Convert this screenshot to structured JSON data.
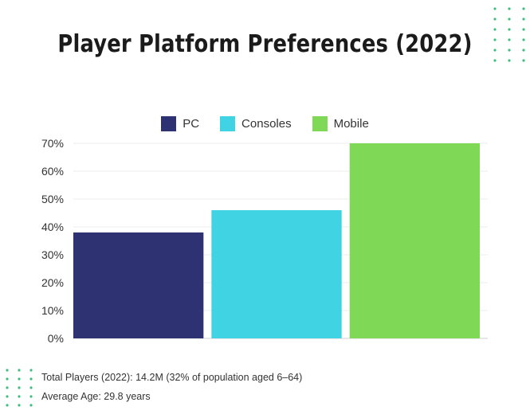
{
  "title": "Player Platform Preferences (2022)",
  "notes": [
    "Total Players (2022): 14.2M (32% of population aged 6–64)",
    "Average Age: 29.8 years"
  ],
  "chart_data": {
    "type": "bar",
    "title": "Player Platform Preferences (2022)",
    "categories": [
      "PC",
      "Consoles",
      "Mobile"
    ],
    "values": [
      38,
      46,
      70
    ],
    "colors": [
      "#2e3272",
      "#3fd3e3",
      "#7fd957"
    ],
    "ylim": [
      0,
      70
    ],
    "yticks": [
      "0%",
      "10%",
      "20%",
      "30%",
      "40%",
      "50%",
      "60%",
      "70%"
    ],
    "legend": "top-center",
    "grid": true
  }
}
